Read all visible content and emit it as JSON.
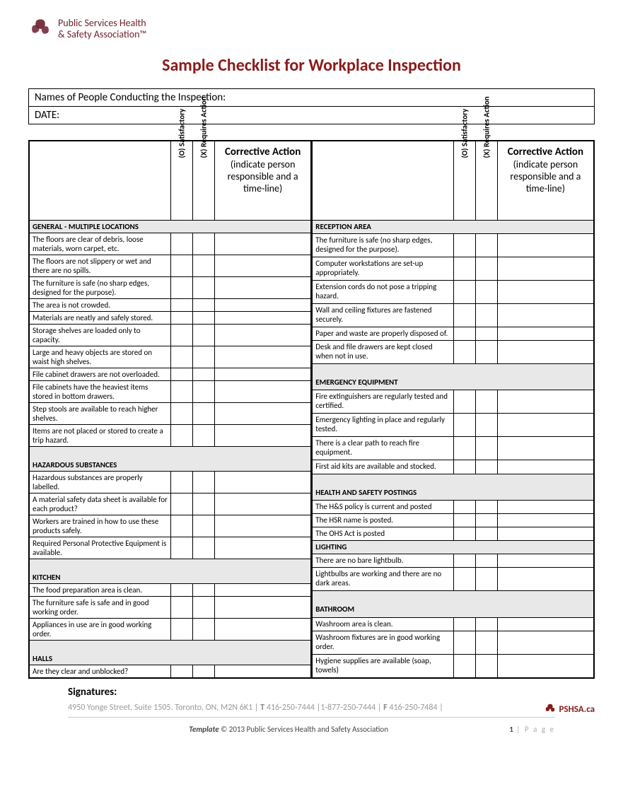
{
  "brand": {
    "name_line1": "Public Services Health",
    "name_line2": "& Safety Association™",
    "logo_color": "#6b1f2e",
    "short": "PSHSA.ca"
  },
  "title": "Sample Checklist for Workplace Inspection",
  "title_color": "#8b1a1a",
  "info": {
    "names_label": "Names of People Conducting the Inspection:",
    "date_label": "DATE:"
  },
  "headers": {
    "satisfactory": "(O) Satisfactory",
    "requires": "(X) Requires Action",
    "action_title": "Corrective Action",
    "action_sub": "(indicate person responsible and a time-line)"
  },
  "left_sections": [
    {
      "title": "GENERAL - MULTIPLE LOCATIONS",
      "tight": true,
      "items": [
        "The floors are clear of debris, loose materials, worn carpet, etc.",
        "The floors are not slippery or wet and there are no spills.",
        "The furniture is safe (no sharp edges, designed for the purpose).",
        "The area is not crowded.",
        "Materials are neatly and safely stored.",
        "Storage shelves are loaded only to capacity.",
        "Large and heavy objects are stored on waist high shelves.",
        "File cabinet drawers are not overloaded.",
        "File cabinets have the heaviest items stored in bottom drawers.",
        "Step stools are available to reach higher shelves.",
        "Items are not placed or stored to create a trip hazard."
      ]
    },
    {
      "title": "HAZARDOUS SUBSTANCES",
      "items": [
        "Hazardous substances are properly labelled.",
        "A material safety data sheet is available for each product?",
        "Workers are trained in how to use these products safely.",
        "Required Personal Protective Equipment is available."
      ]
    },
    {
      "title": "KITCHEN",
      "items": [
        "The food preparation area is clean.",
        "The furniture safe is safe and in good working order.",
        "Appliances in use are in good working order."
      ]
    },
    {
      "title": "HALLS",
      "items": [
        "Are they clear and unblocked?"
      ]
    }
  ],
  "right_sections": [
    {
      "title": "RECEPTION AREA",
      "tight": true,
      "items": [
        "The furniture is safe (no sharp edges, designed for the purpose).",
        "Computer workstations are set-up appropriately.",
        "Extension cords do not pose a tripping hazard.",
        "Wall and ceiling fixtures are fastened securely.",
        "Paper and waste are properly disposed of.",
        "Desk and file drawers are kept closed when not in use."
      ]
    },
    {
      "title": "EMERGENCY EQUIPMENT",
      "items": [
        "Fire extinguishers are regularly tested and certified.",
        "Emergency lighting in place and regularly tested.",
        "There is a clear path to reach fire equipment.",
        "First aid kits are available and stocked."
      ]
    },
    {
      "title": "HEALTH AND SAFETY POSTINGS",
      "items": [
        "The H&S policy is current and posted",
        "The HSR name is posted.",
        "The OHS Act is posted"
      ]
    },
    {
      "title": "LIGHTING",
      "tight": true,
      "items": [
        "There are no bare lightbulb.",
        "Lightbulbs are working and there are no dark areas."
      ]
    },
    {
      "title": "BATHROOM",
      "items": [
        "Washroom area is clean.",
        "Washroom fixtures are in good working order.",
        "Hygiene supplies are available (soap, towels)"
      ]
    }
  ],
  "signatures_label": "Signatures:",
  "footer": {
    "address": "4950 Yonge Street, Suite 1505. Toronto, ON, M2N 6K1",
    "tel_label": "T",
    "tel": "416-250-7444",
    "tollfree": "1-877-250-7444",
    "fax_label": "F",
    "fax": "416-250-7484",
    "copyright_prefix": "Template",
    "copyright": "© 2013 Public Services Health and Safety Association",
    "page": "1",
    "page_word": "P a g e"
  }
}
